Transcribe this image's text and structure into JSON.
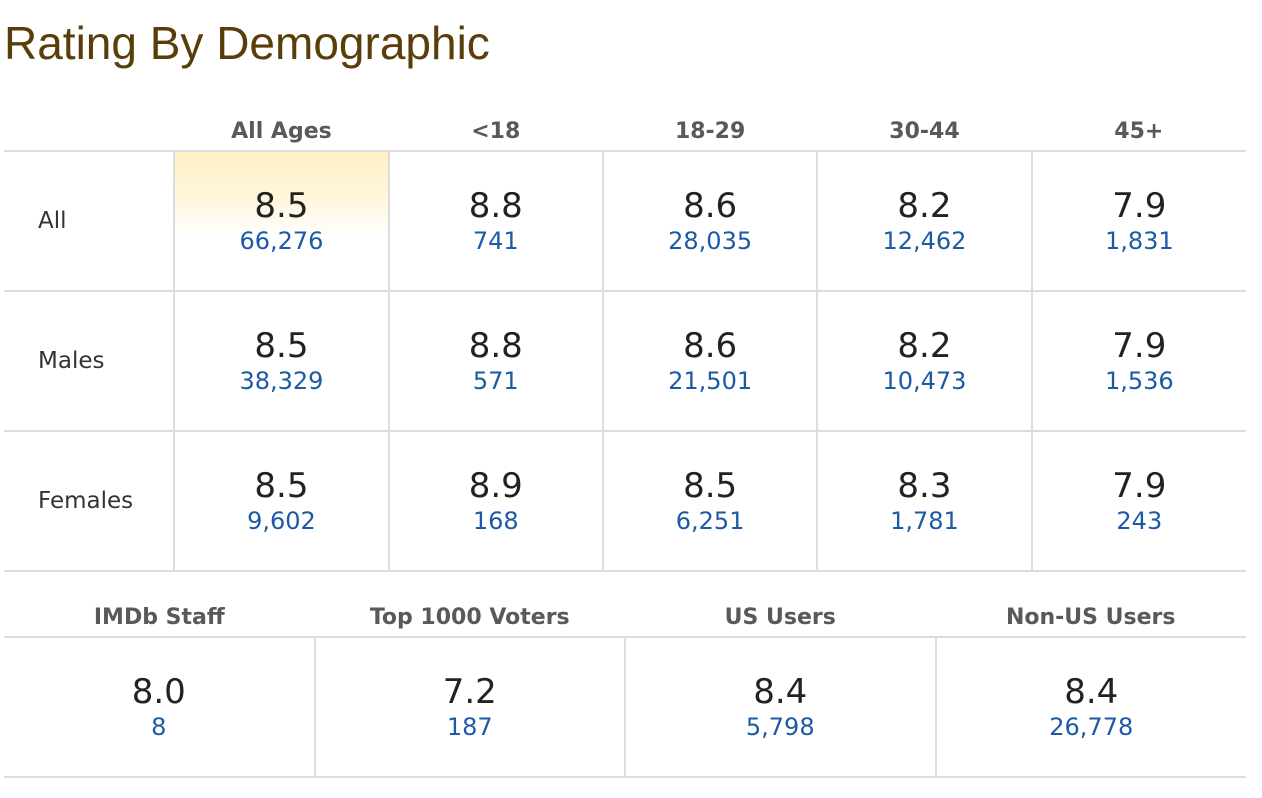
{
  "title": "Rating By Demographic",
  "age_columns": [
    "All Ages",
    "<18",
    "18-29",
    "30-44",
    "45+"
  ],
  "rows": [
    {
      "label": "All",
      "cells": [
        {
          "rating": "8.5",
          "votes": "66,276"
        },
        {
          "rating": "8.8",
          "votes": "741"
        },
        {
          "rating": "8.6",
          "votes": "28,035"
        },
        {
          "rating": "8.2",
          "votes": "12,462"
        },
        {
          "rating": "7.9",
          "votes": "1,831"
        }
      ]
    },
    {
      "label": "Males",
      "cells": [
        {
          "rating": "8.5",
          "votes": "38,329"
        },
        {
          "rating": "8.8",
          "votes": "571"
        },
        {
          "rating": "8.6",
          "votes": "21,501"
        },
        {
          "rating": "8.2",
          "votes": "10,473"
        },
        {
          "rating": "7.9",
          "votes": "1,536"
        }
      ]
    },
    {
      "label": "Females",
      "cells": [
        {
          "rating": "8.5",
          "votes": "9,602"
        },
        {
          "rating": "8.9",
          "votes": "168"
        },
        {
          "rating": "8.5",
          "votes": "6,251"
        },
        {
          "rating": "8.3",
          "votes": "1,781"
        },
        {
          "rating": "7.9",
          "votes": "243"
        }
      ]
    }
  ],
  "groups": [
    {
      "label": "IMDb Staff",
      "rating": "8.0",
      "votes": "8"
    },
    {
      "label": "Top 1000 Voters",
      "rating": "7.2",
      "votes": "187"
    },
    {
      "label": "US Users",
      "rating": "8.4",
      "votes": "5,798"
    },
    {
      "label": "Non-US Users",
      "rating": "8.4",
      "votes": "26,778"
    }
  ],
  "colors": {
    "title": "#5a3e0a",
    "link": "#1d5aa5",
    "highlight": "#fff0c4"
  }
}
